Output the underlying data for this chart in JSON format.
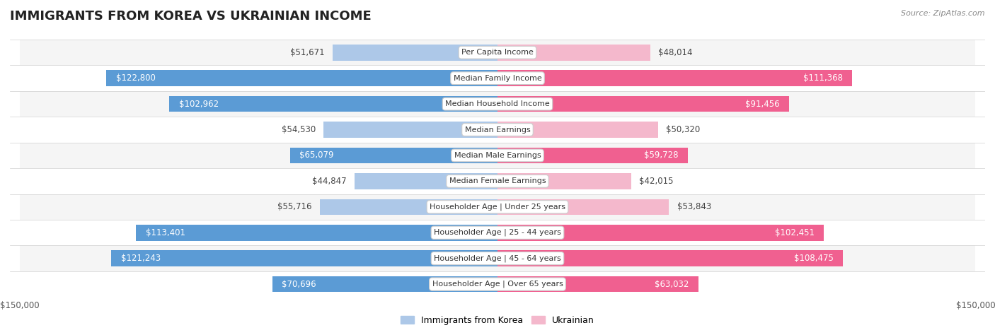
{
  "title": "IMMIGRANTS FROM KOREA VS UKRAINIAN INCOME",
  "source": "Source: ZipAtlas.com",
  "categories": [
    "Per Capita Income",
    "Median Family Income",
    "Median Household Income",
    "Median Earnings",
    "Median Male Earnings",
    "Median Female Earnings",
    "Householder Age | Under 25 years",
    "Householder Age | 25 - 44 years",
    "Householder Age | 45 - 64 years",
    "Householder Age | Over 65 years"
  ],
  "korea_values": [
    51671,
    122800,
    102962,
    54530,
    65079,
    44847,
    55716,
    113401,
    121243,
    70696
  ],
  "ukraine_values": [
    48014,
    111368,
    91456,
    50320,
    59728,
    42015,
    53843,
    102451,
    108475,
    63032
  ],
  "korea_labels": [
    "$51,671",
    "$122,800",
    "$102,962",
    "$54,530",
    "$65,079",
    "$44,847",
    "$55,716",
    "$113,401",
    "$121,243",
    "$70,696"
  ],
  "ukraine_labels": [
    "$48,014",
    "$111,368",
    "$91,456",
    "$50,320",
    "$59,728",
    "$42,015",
    "$53,843",
    "$102,451",
    "$108,475",
    "$63,032"
  ],
  "korea_color_light": "#adc8e8",
  "korea_color_dark": "#5b9bd5",
  "ukraine_color_light": "#f4b8cc",
  "ukraine_color_dark": "#f06090",
  "inside_threshold": 0.38,
  "bar_height": 0.62,
  "row_bg_even": "#f5f5f5",
  "row_bg_odd": "#ffffff",
  "max_value": 150000,
  "background_color": "#ffffff",
  "legend_korea": "Immigrants from Korea",
  "legend_ukraine": "Ukrainian",
  "title_fontsize": 13,
  "label_fontsize": 8.5,
  "cat_fontsize": 8.0
}
